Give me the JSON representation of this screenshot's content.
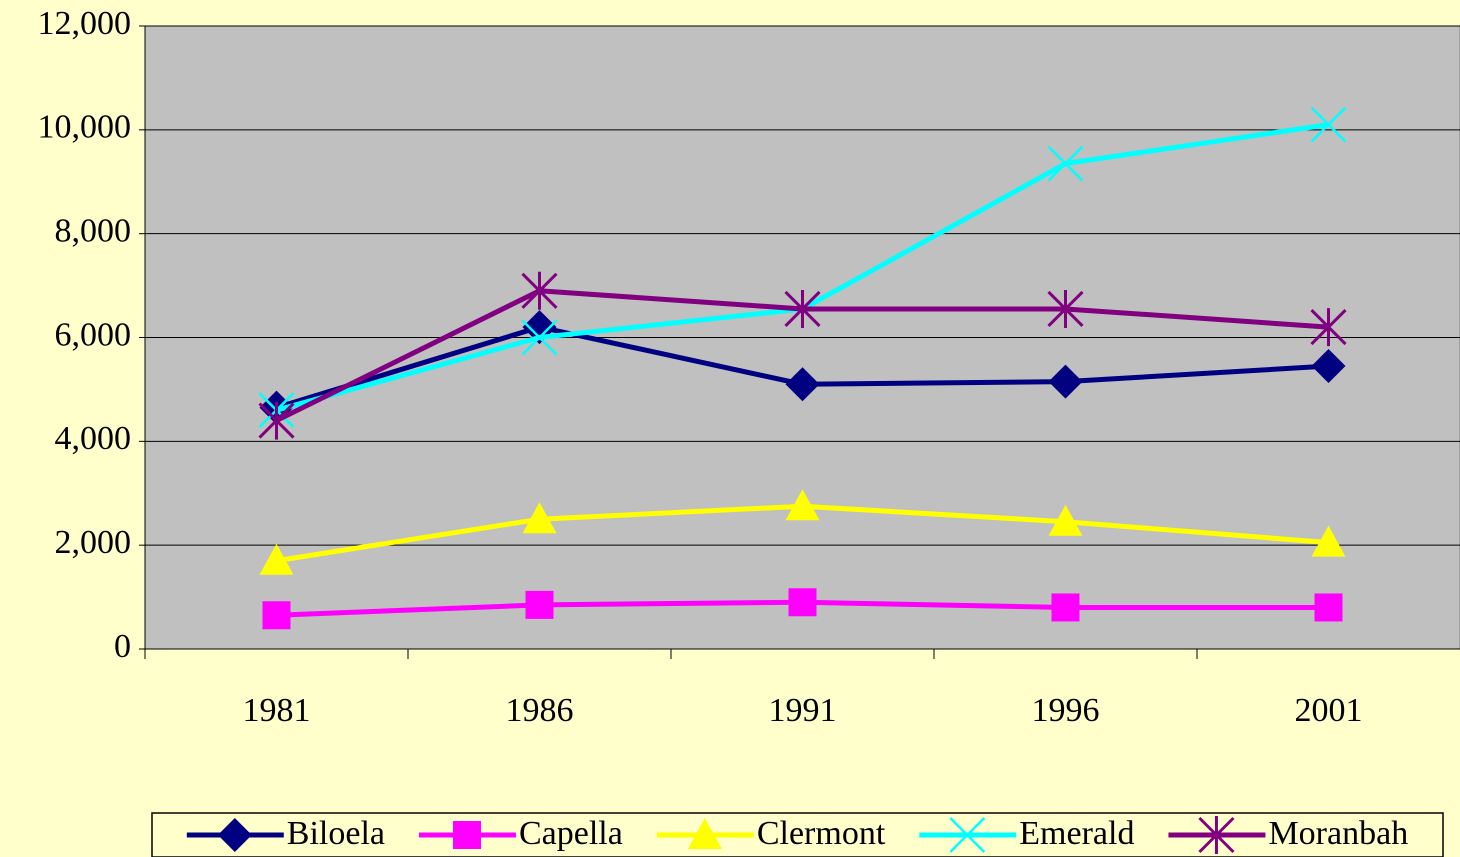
{
  "chart_data": {
    "type": "line",
    "categories": [
      "1981",
      "1986",
      "1991",
      "1996",
      "2001"
    ],
    "series": [
      {
        "name": "Biloela",
        "color": "#000080",
        "marker": "diamond",
        "values": [
          4650,
          6200,
          5100,
          5150,
          5450
        ]
      },
      {
        "name": "Capella",
        "color": "#ff00ff",
        "marker": "square",
        "values": [
          650,
          850,
          900,
          800,
          800
        ]
      },
      {
        "name": "Clermont",
        "color": "#ffff00",
        "marker": "triangle",
        "values": [
          1700,
          2500,
          2750,
          2450,
          2050
        ]
      },
      {
        "name": "Emerald",
        "color": "#00ffff",
        "marker": "x",
        "values": [
          4600,
          6000,
          6550,
          9350,
          10100
        ]
      },
      {
        "name": "Moranbah",
        "color": "#800080",
        "marker": "star",
        "values": [
          4400,
          6900,
          6550,
          6550,
          6200
        ]
      }
    ],
    "ylim": [
      0,
      12000
    ],
    "yticks": [
      0,
      {
        "value": 2000,
        "label": "2,000"
      },
      {
        "value": 4000,
        "label": "4,000"
      },
      {
        "value": 6000,
        "label": "6,000"
      },
      {
        "value": 8000,
        "label": "8,000"
      },
      {
        "value": 10000,
        "label": "10,000"
      },
      {
        "value": 12000,
        "label": "12,000"
      }
    ],
    "grid": true,
    "plot_background": "#c0c0c0",
    "legend": "bottom"
  }
}
